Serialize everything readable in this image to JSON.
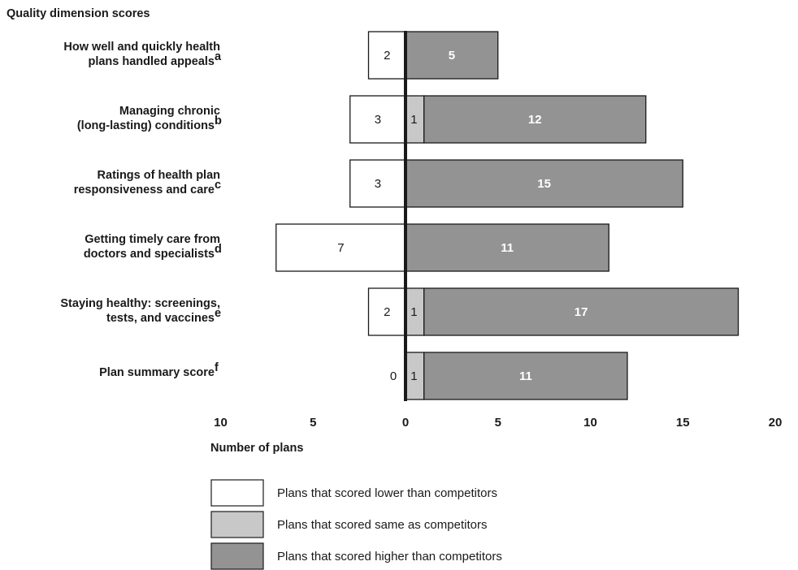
{
  "chart_data": {
    "type": "bar",
    "title": "Quality dimension scores",
    "xlabel": "Number of plans",
    "x_ticks": [
      "10",
      "5",
      "0",
      "5",
      "10",
      "15",
      "20"
    ],
    "xlim": [
      -10,
      20
    ],
    "categories": [
      {
        "line1": "How well and quickly health",
        "line2": "plans handled appeals",
        "sup": "a"
      },
      {
        "line1": "Managing chronic",
        "line2": "(long-lasting) conditions",
        "sup": "b"
      },
      {
        "line1": "Ratings of health plan",
        "line2": "responsiveness and care",
        "sup": "c"
      },
      {
        "line1": "Getting timely care from",
        "line2": "doctors and specialists",
        "sup": "d"
      },
      {
        "line1": "Staying healthy: screenings,",
        "line2": "tests, and vaccines",
        "sup": "e"
      },
      {
        "line1": "",
        "line2": "Plan summary score",
        "sup": "f"
      }
    ],
    "series": [
      {
        "name": "Plans that scored lower than competitors",
        "values": [
          2,
          3,
          3,
          7,
          2,
          0
        ],
        "labels": [
          "2",
          "3",
          "3",
          "7",
          "2",
          "0"
        ],
        "color": "#ffffff"
      },
      {
        "name": "Plans that scored same as competitors",
        "values": [
          0,
          1,
          0,
          0,
          1,
          1
        ],
        "labels": [
          "",
          "1",
          "",
          "",
          "1",
          "1"
        ],
        "color": "#c8c8c8"
      },
      {
        "name": "Plans that scored higher than competitors",
        "values": [
          5,
          12,
          15,
          11,
          17,
          11
        ],
        "labels": [
          "5",
          "12",
          "15",
          "11",
          "17",
          "11"
        ],
        "color": "#939393"
      }
    ],
    "legend_position": "bottom-left",
    "grid": false
  }
}
